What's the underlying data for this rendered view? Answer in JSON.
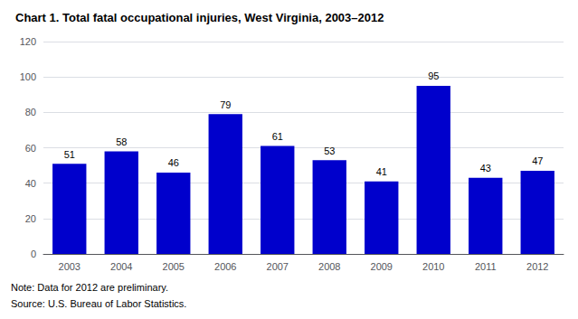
{
  "chart_data": {
    "type": "bar",
    "title": "Chart 1. Total fatal occupational injuries, West Virginia, 2003–2012",
    "categories": [
      "2003",
      "2004",
      "2005",
      "2006",
      "2007",
      "2008",
      "2009",
      "2010",
      "2011",
      "2012"
    ],
    "values": [
      51,
      58,
      46,
      79,
      61,
      53,
      41,
      95,
      43,
      47
    ],
    "color": "#0000cc",
    "ylim": [
      0,
      120
    ],
    "yticks": [
      0,
      20,
      40,
      60,
      80,
      100,
      120
    ],
    "grid": true,
    "data_labels": true,
    "annotations": [
      "Note: Data for 2012 are preliminary.",
      "Source: U.S. Bureau of Labor Statistics."
    ]
  }
}
